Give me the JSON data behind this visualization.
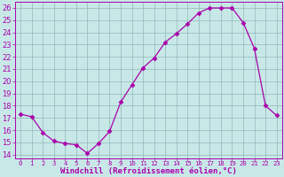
{
  "x": [
    0,
    1,
    2,
    3,
    4,
    5,
    6,
    7,
    8,
    9,
    10,
    11,
    12,
    13,
    14,
    15,
    16,
    17,
    18,
    19,
    20,
    21,
    22,
    23
  ],
  "y": [
    17.3,
    17.1,
    15.8,
    15.1,
    14.9,
    14.8,
    14.1,
    14.9,
    15.9,
    18.3,
    19.7,
    21.1,
    21.9,
    23.2,
    23.9,
    24.7,
    25.6,
    26.0,
    26.0,
    26.0,
    24.8,
    22.7,
    18.0,
    17.2
  ],
  "line_color": "#aa00aa",
  "marker": "D",
  "marker_size": 2.5,
  "bg_color": "#c8e8e8",
  "grid_color": "#90b8b8",
  "ylim": [
    13.7,
    26.5
  ],
  "xlim": [
    -0.5,
    23.5
  ],
  "yticks": [
    14,
    15,
    16,
    17,
    18,
    19,
    20,
    21,
    22,
    23,
    24,
    25,
    26
  ],
  "xtick_labels": [
    "0",
    "1",
    "2",
    "3",
    "4",
    "5",
    "6",
    "7",
    "8",
    "9",
    "10",
    "11",
    "12",
    "13",
    "14",
    "15",
    "16",
    "17",
    "18",
    "19",
    "20",
    "21",
    "22",
    "23"
  ],
  "xlabel": "Windchill (Refroidissement éolien,°C)",
  "xlabel_color": "#aa00aa",
  "tick_color": "#aa00aa",
  "spine_color": "#aa00aa",
  "ytick_fontsize": 6.0,
  "xtick_fontsize": 5.2,
  "xlabel_fontsize": 6.5
}
